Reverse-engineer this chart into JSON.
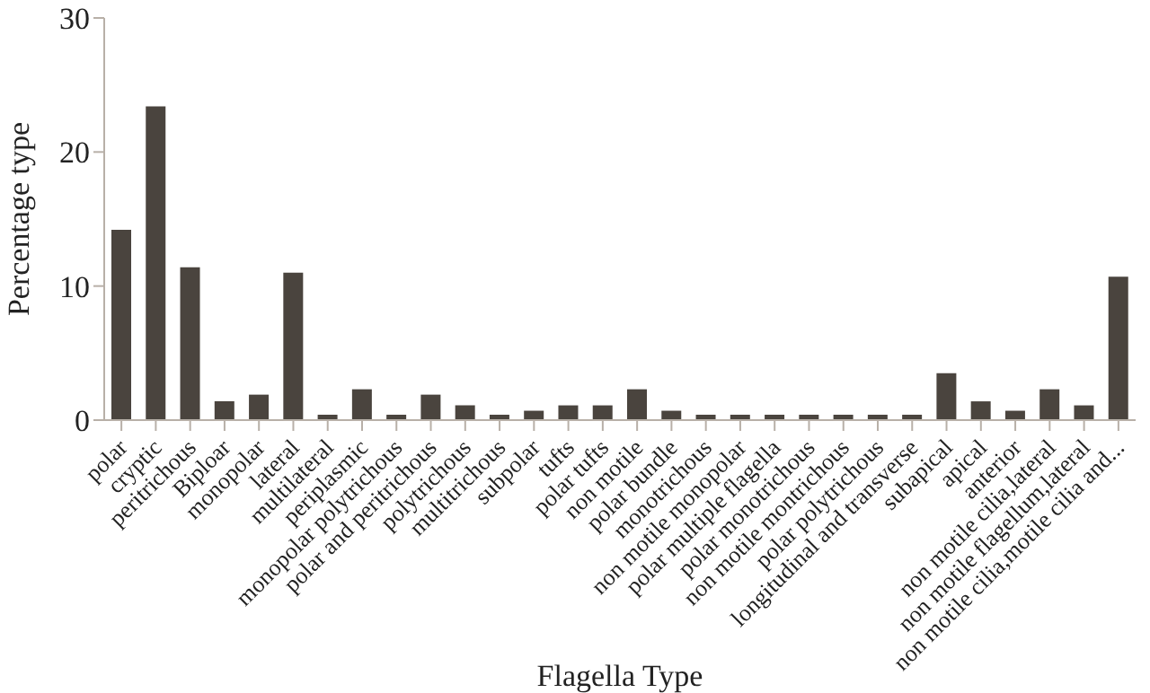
{
  "chart_data": {
    "type": "bar",
    "xlabel": "Flagella Type",
    "ylabel": "Percentage type",
    "categories": [
      "polar",
      "cryptic",
      "peritrichous",
      "Biploar",
      "monopolar",
      "lateral",
      "multilateral",
      "periplasmic",
      "monopolar polytrichous",
      "polar and peritrichous",
      "polytrichous",
      "multitrichous",
      "subpolar",
      "tufts",
      "polar tufts",
      "non motile",
      "polar bundle",
      "monotrichous",
      "non motile monopolar",
      "polar multiple flagella",
      "polar monotrichous",
      "non motile montrichous",
      "polar polytrichous",
      "longitudinal and transverse",
      "subapical",
      "apical",
      "anterior",
      "non motile cilia,lateral",
      "non motile flagellum,lateral",
      "non motile cilia,motile cilia and..."
    ],
    "values": [
      14.2,
      23.4,
      11.4,
      1.4,
      1.9,
      11.0,
      0.4,
      2.3,
      0.4,
      1.9,
      1.1,
      0.4,
      0.7,
      1.1,
      1.1,
      2.3,
      0.7,
      0.4,
      0.4,
      0.4,
      0.4,
      0.4,
      0.4,
      0.4,
      3.5,
      1.4,
      0.7,
      2.3,
      1.1,
      10.7
    ],
    "color": "#4a443e",
    "ylim": [
      0,
      30
    ],
    "yticks": [
      0,
      10,
      20,
      30
    ],
    "grid": false,
    "legend": false
  }
}
